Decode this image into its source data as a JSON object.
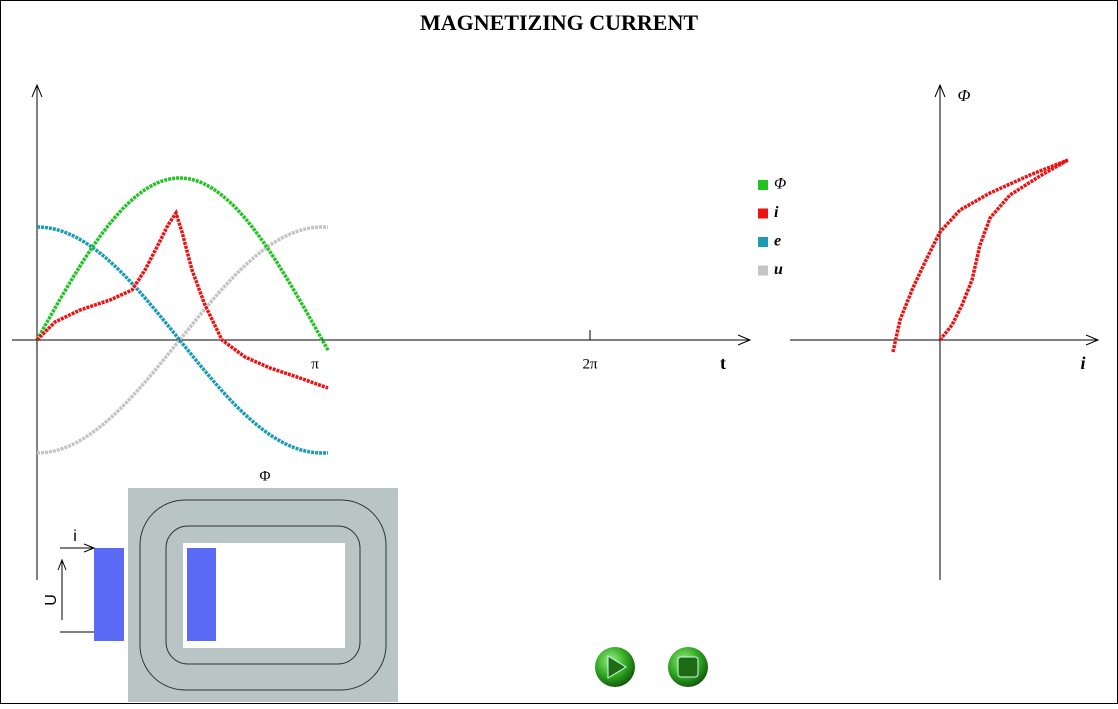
{
  "title": "MAGNETIZING CURRENT",
  "left_plot": {
    "x_label": "t",
    "ticks": [
      "π",
      "2π"
    ]
  },
  "legend": [
    {
      "label": "Φ",
      "color": "#22c322"
    },
    {
      "label": "i",
      "color": "#ee1111"
    },
    {
      "label": "e",
      "color": "#1a9bb8"
    },
    {
      "label": "u",
      "color": "#c4c4c4"
    }
  ],
  "right_plot": {
    "y_label": "Φ",
    "x_label": "i"
  },
  "transformer": {
    "flux_label": "Φ",
    "current_label": "i",
    "voltage_label": "U"
  }
}
